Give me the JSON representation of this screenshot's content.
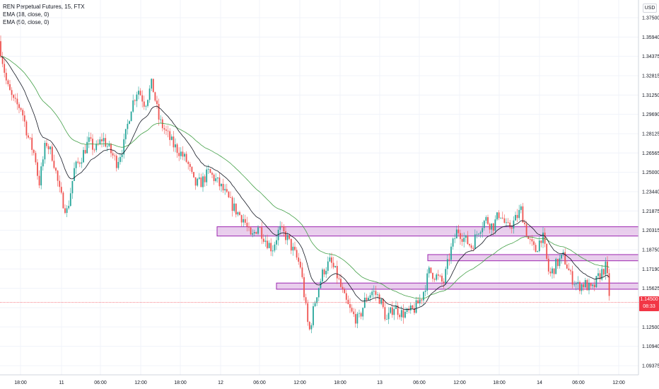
{
  "legend": {
    "symbol": "REN Perpetual Futures, 15, FTX",
    "ema18": "EMA (18, close, 0)",
    "ema50": "EMA (50, close, 0)"
  },
  "currency": "USD",
  "last_price": {
    "value": "1.14500",
    "countdown": "08:33"
  },
  "colors": {
    "up": "#26a69a",
    "down": "#ef5350",
    "ema18": "#131722",
    "ema50": "#43a047",
    "zone_fill": "#e1bee7",
    "zone_border": "#9c27b0",
    "price_line": "#f23645"
  },
  "chart_data": {
    "type": "candlestick",
    "y_ticks": [
      "1.37500",
      "1.35940",
      "1.34375",
      "1.32815",
      "1.31250",
      "1.29690",
      "1.28125",
      "1.26565",
      "1.25000",
      "1.23440",
      "1.21875",
      "1.20315",
      "1.18750",
      "1.17190",
      "1.15625",
      "1.14065",
      "1.12500",
      "1.10940",
      "1.09375"
    ],
    "x_ticks": [
      "18:00",
      "11",
      "06:00",
      "12:00",
      "18:00",
      "12",
      "06:00",
      "12:00",
      "18:00",
      "13",
      "06:00",
      "12:00",
      "18:00",
      "14",
      "06:00",
      "12:00"
    ],
    "ylim": [
      1.085,
      1.38
    ],
    "close_path": [
      [
        0,
        1.352
      ],
      [
        10,
        1.32
      ],
      [
        20,
        1.306
      ],
      [
        30,
        1.302
      ],
      [
        40,
        1.278
      ],
      [
        50,
        1.262
      ],
      [
        55,
        1.24
      ],
      [
        65,
        1.275
      ],
      [
        75,
        1.262
      ],
      [
        85,
        1.232
      ],
      [
        95,
        1.218
      ],
      [
        105,
        1.252
      ],
      [
        115,
        1.262
      ],
      [
        125,
        1.275
      ],
      [
        135,
        1.268
      ],
      [
        145,
        1.278
      ],
      [
        155,
        1.268
      ],
      [
        165,
        1.258
      ],
      [
        175,
        1.272
      ],
      [
        185,
        1.302
      ],
      [
        195,
        1.318
      ],
      [
        205,
        1.305
      ],
      [
        215,
        1.322
      ],
      [
        225,
        1.292
      ],
      [
        235,
        1.282
      ],
      [
        245,
        1.272
      ],
      [
        255,
        1.266
      ],
      [
        265,
        1.258
      ],
      [
        275,
        1.24
      ],
      [
        285,
        1.242
      ],
      [
        295,
        1.25
      ],
      [
        305,
        1.244
      ],
      [
        315,
        1.236
      ],
      [
        325,
        1.226
      ],
      [
        335,
        1.218
      ],
      [
        345,
        1.212
      ],
      [
        355,
        1.196
      ],
      [
        365,
        1.207
      ],
      [
        375,
        1.196
      ],
      [
        385,
        1.188
      ],
      [
        395,
        1.204
      ],
      [
        405,
        1.198
      ],
      [
        415,
        1.186
      ],
      [
        425,
        1.174
      ],
      [
        437,
        1.12
      ],
      [
        447,
        1.15
      ],
      [
        457,
        1.17
      ],
      [
        467,
        1.178
      ],
      [
        477,
        1.166
      ],
      [
        487,
        1.148
      ],
      [
        497,
        1.136
      ],
      [
        507,
        1.13
      ],
      [
        517,
        1.148
      ],
      [
        527,
        1.154
      ],
      [
        537,
        1.148
      ],
      [
        547,
        1.13
      ],
      [
        557,
        1.142
      ],
      [
        567,
        1.136
      ],
      [
        577,
        1.136
      ],
      [
        587,
        1.14
      ],
      [
        597,
        1.15
      ],
      [
        607,
        1.17
      ],
      [
        617,
        1.166
      ],
      [
        627,
        1.16
      ],
      [
        637,
        1.186
      ],
      [
        647,
        1.204
      ],
      [
        657,
        1.196
      ],
      [
        667,
        1.19
      ],
      [
        677,
        1.204
      ],
      [
        687,
        1.212
      ],
      [
        697,
        1.206
      ],
      [
        707,
        1.218
      ],
      [
        717,
        1.204
      ],
      [
        727,
        1.21
      ],
      [
        737,
        1.22
      ],
      [
        747,
        1.196
      ],
      [
        757,
        1.186
      ],
      [
        767,
        1.2
      ],
      [
        777,
        1.166
      ],
      [
        787,
        1.176
      ],
      [
        797,
        1.182
      ],
      [
        807,
        1.166
      ],
      [
        817,
        1.158
      ],
      [
        827,
        1.16
      ],
      [
        837,
        1.154
      ],
      [
        847,
        1.166
      ],
      [
        857,
        1.174
      ],
      [
        863,
        1.145
      ]
    ],
    "zones": [
      {
        "x": [
          307,
          903
        ],
        "y": [
          1.1985,
          1.206
        ]
      },
      {
        "x": [
          605,
          903
        ],
        "y": [
          1.1785,
          1.1835
        ]
      },
      {
        "x": [
          391,
          903
        ],
        "y": [
          1.1555,
          1.1605
        ]
      }
    ],
    "last": 1.145
  }
}
